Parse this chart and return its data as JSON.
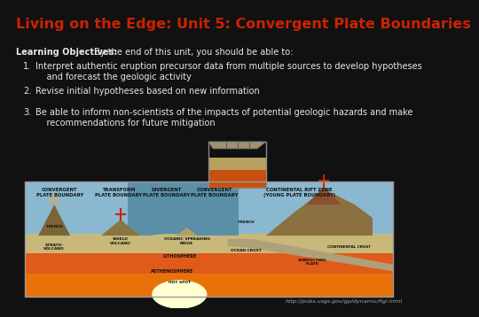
{
  "title": "Living on the Edge: Unit 5: Convergent Plate Boundaries",
  "title_color": "#cc2200",
  "title_fontsize": 11.5,
  "background_color": "#111111",
  "text_color": "#e8e8e8",
  "bold_label": "Learning Objectives:",
  "intro_text": " By the end of this unit, you should be able to:",
  "objectives": [
    "Interpret authentic eruption precursor data from multiple sources to develop hypotheses\n    and forecast the geologic activity",
    "Revise initial hypotheses based on new information",
    "Be able to inform non-scientists of the impacts of potential geologic hazards and make\n    recommendations for future mitigation"
  ],
  "url_text": "http://pubs.usgs.gov/gp/dynamic/figl.html",
  "url_fontsize": 4.5,
  "text_fontsize": 7.0,
  "obj_fontsize": 7.0,
  "diagram_labels": [
    [
      0.115,
      "CONVERGENT\nPLATE BOUNDARY"
    ],
    [
      0.255,
      "TRANSFORM\nPLATE BOUNDARY"
    ],
    [
      0.385,
      "DIVERGENT\nPLATE BOUNDARY"
    ],
    [
      0.525,
      "CONVERGENT\nPLATE BOUNDARY"
    ],
    [
      0.735,
      "CONTINENTAL RIFT ZONE\n(YOUNG PLATE BOUNDARY)"
    ]
  ],
  "sky_color": "#8ab8d0",
  "ocean_color": "#5b8fa8",
  "lithosphere_color": "#c8b87a",
  "asthenosphere_color": "#e05a1a",
  "deep_color": "#e8720a",
  "hotspot_color": "#ffffc0",
  "subduct_color": "#b0a07a",
  "mountain_color": "#8b7040"
}
